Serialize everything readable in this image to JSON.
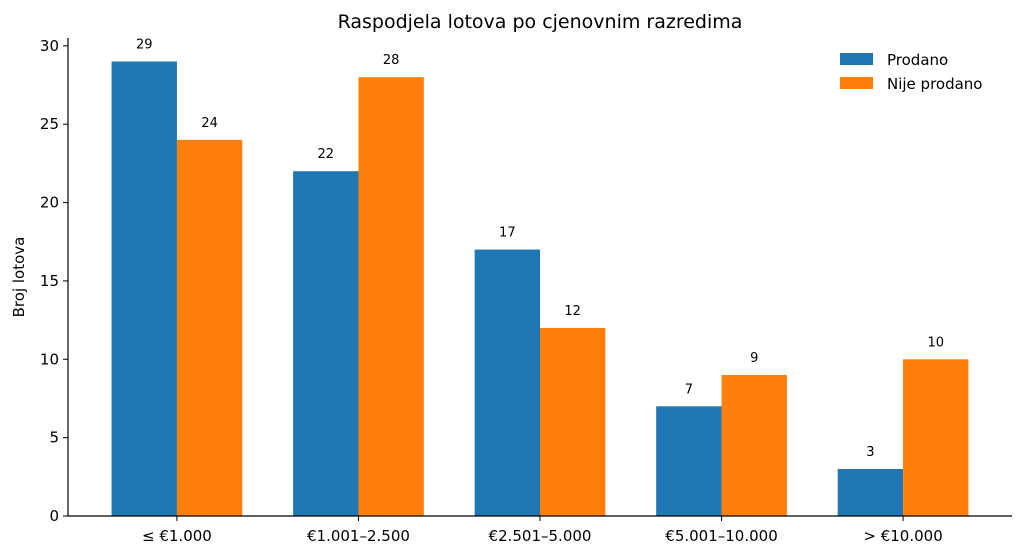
{
  "chart_data": {
    "type": "bar",
    "title": "Raspodjela lotova po cjenovnim razredima",
    "xlabel": "",
    "ylabel": "Broj lotova",
    "categories": [
      "≤ €1.000",
      "€1.001–2.500",
      "€2.501–5.000",
      "€5.001–10.000",
      "> €10.000"
    ],
    "series": [
      {
        "name": "Prodano",
        "values": [
          29,
          22,
          17,
          7,
          3
        ],
        "color": "#1f77b4"
      },
      {
        "name": "Nije prodano",
        "values": [
          24,
          28,
          12,
          9,
          10
        ],
        "color": "#ff7f0e"
      }
    ],
    "ylim": [
      0,
      30.5
    ],
    "yticks": [
      0,
      5,
      10,
      15,
      20,
      25,
      30
    ],
    "grid": false,
    "legend": "top-right",
    "data_labels": true
  }
}
